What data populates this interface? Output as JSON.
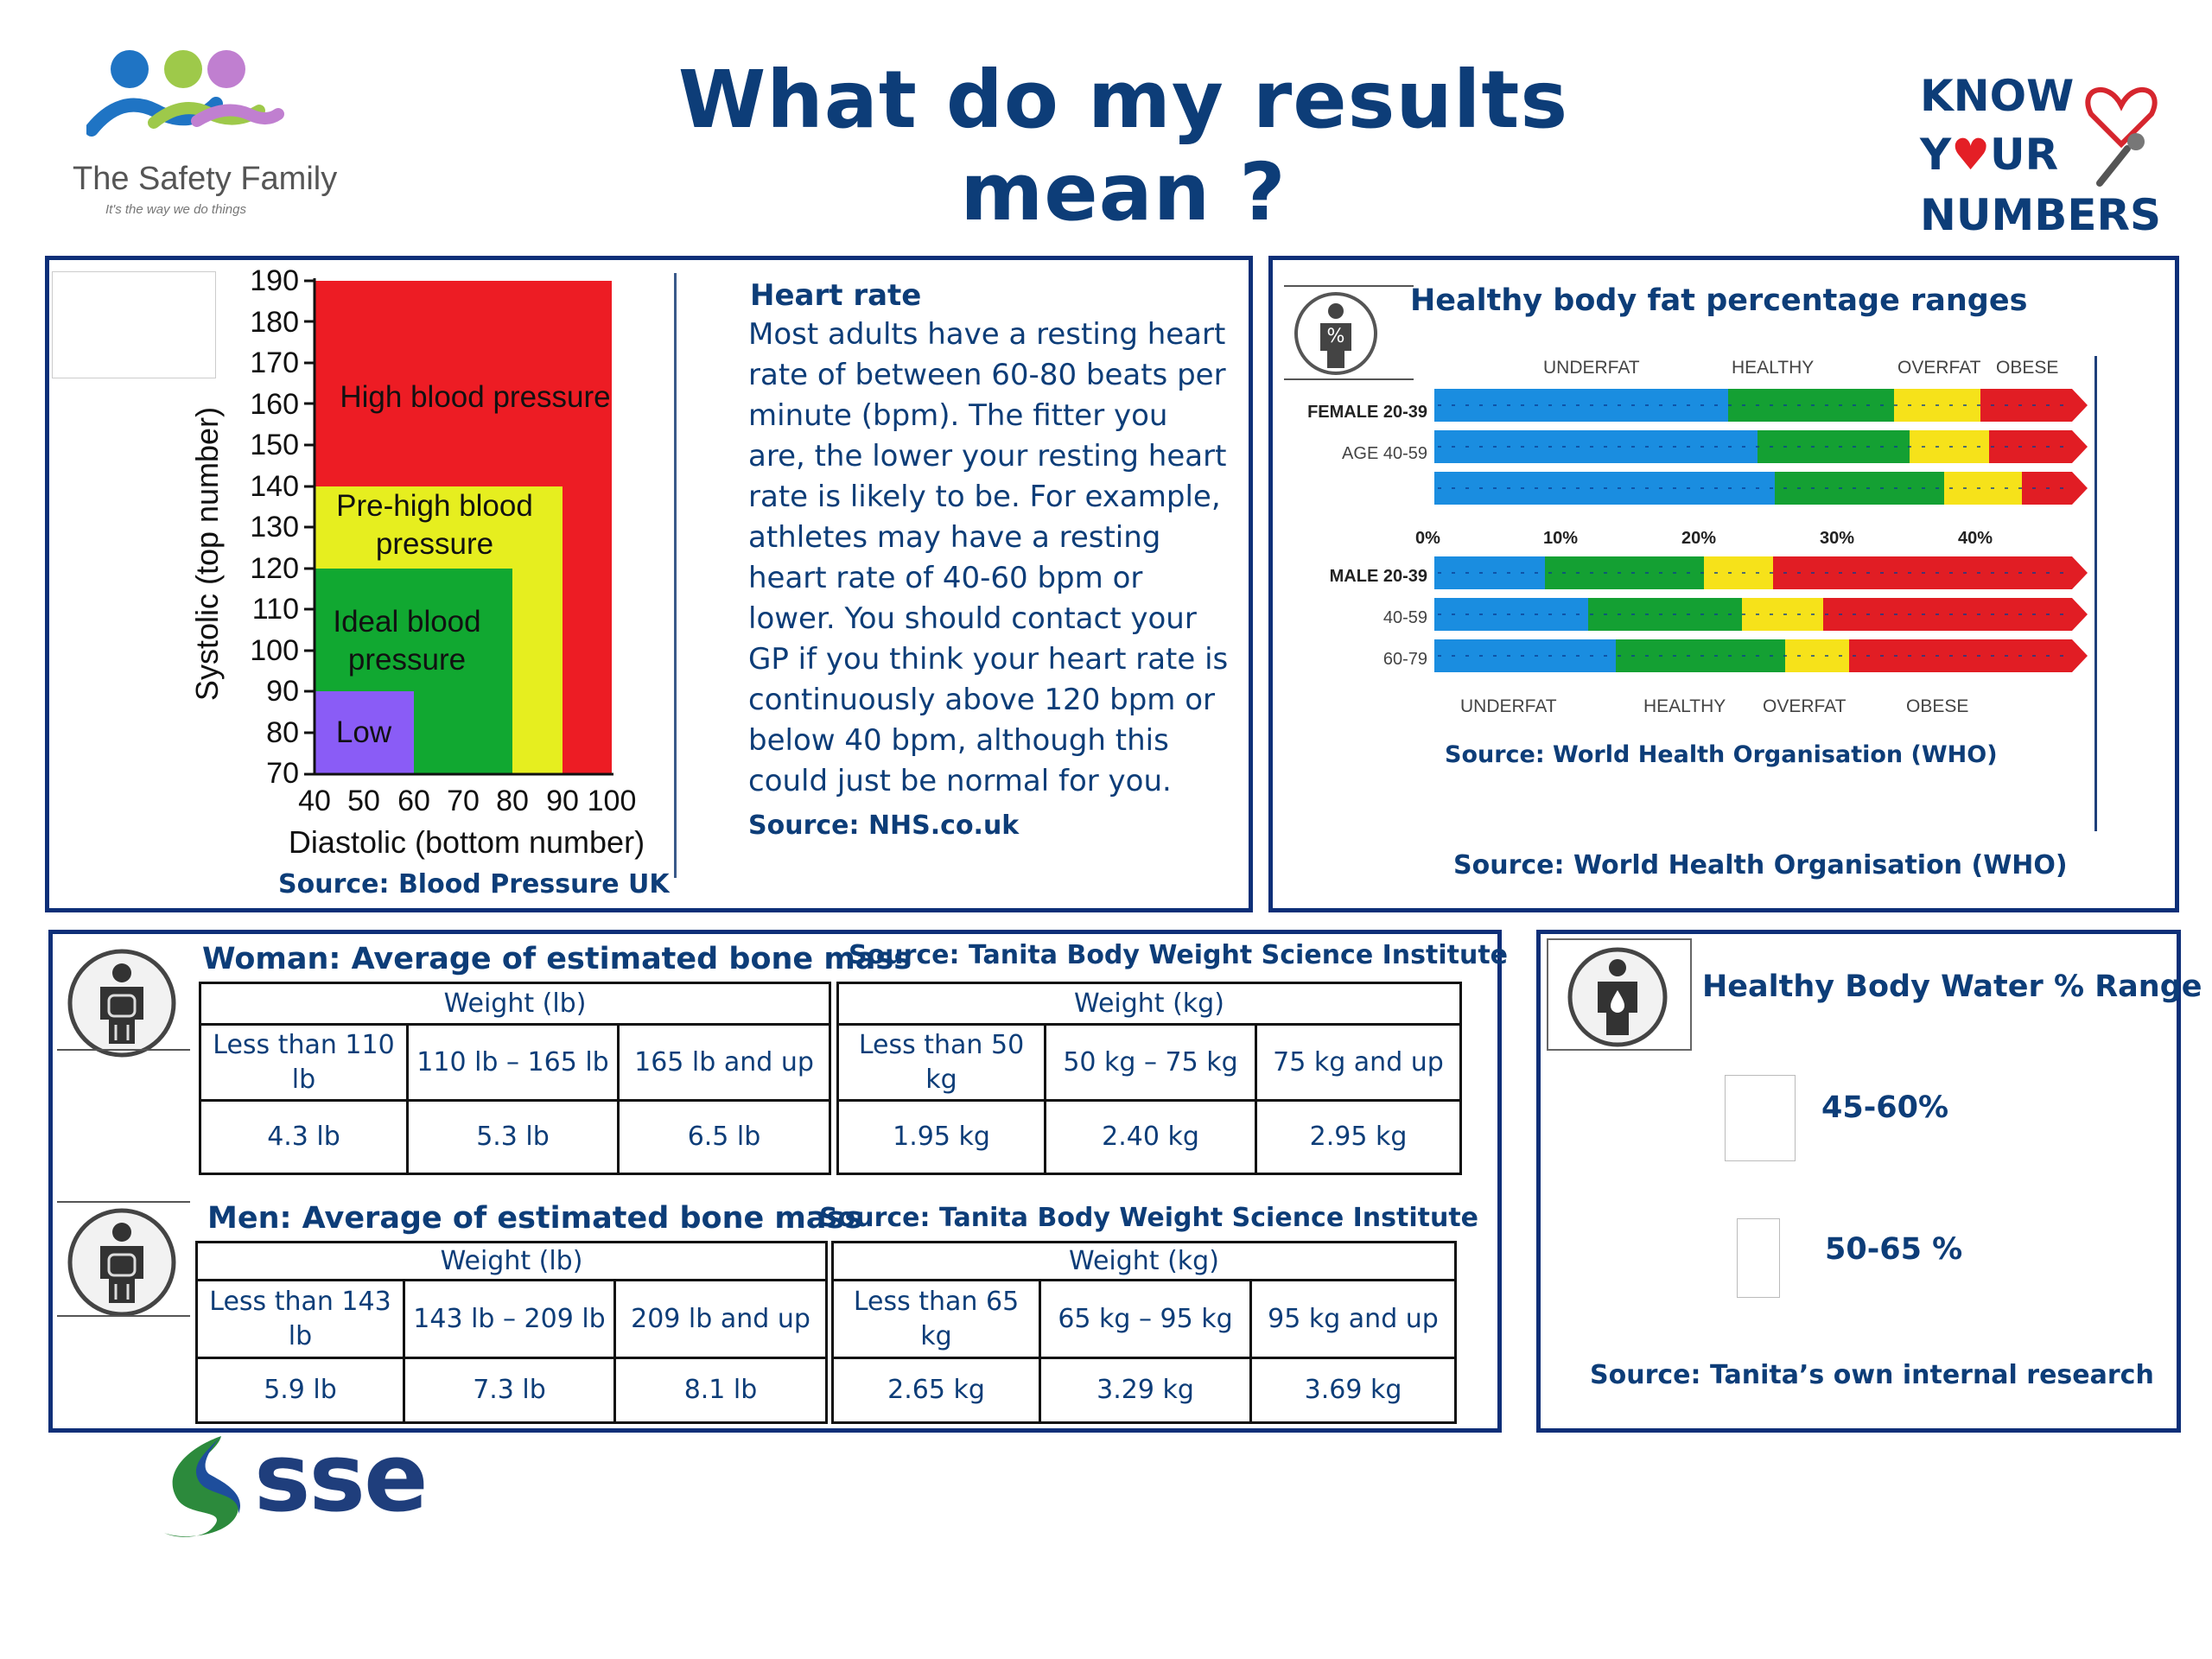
{
  "header": {
    "title": "What do my results mean ?",
    "logo": {
      "brand": "The Safety Family",
      "tagline": "It's the way we do things"
    },
    "badge": {
      "line1": "KNOW",
      "line2_prefix": "Y",
      "line2_suffix": "UR",
      "line3": "NUMBERS"
    },
    "footer_logo": "sse"
  },
  "blood_pressure": {
    "y_label": "Systolic (top number)",
    "x_label": "Diastolic (bottom number)",
    "y_ticks": [
      "190",
      "180",
      "170",
      "160",
      "150",
      "140",
      "130",
      "120",
      "110",
      "100",
      "90",
      "80",
      "70"
    ],
    "x_ticks": [
      "40",
      "50",
      "60",
      "70",
      "80",
      "90",
      "100"
    ],
    "zones": {
      "high": "High blood pressure",
      "prehigh_1": "Pre-high blood",
      "prehigh_2": "pressure",
      "ideal_1": "Ideal blood",
      "ideal_2": "pressure",
      "low": "Low"
    },
    "colors": {
      "high": "#ed1c24",
      "prehigh": "#e6ee1f",
      "ideal": "#11a831",
      "low": "#8a5cf6"
    },
    "source": "Source: Blood Pressure  UK"
  },
  "heart_rate": {
    "title": "Heart rate",
    "body": "Most adults have a resting heart rate of between 60-80 beats per minute (bpm). The fitter you are, the lower your resting heart rate is likely to be. For example, athletes may have a resting heart rate of 40-60 bpm or lower. You should contact your GP if you think your heart rate is continuously above 120 bpm or below 40 bpm, although this could just be normal for you.",
    "source": "Source: NHS.co.uk"
  },
  "body_fat": {
    "title": "Healthy body fat percentage ranges",
    "icon": "percent-body-icon",
    "top_headers": [
      "UNDERFAT",
      "HEALTHY",
      "OVERFAT",
      "OBESE"
    ],
    "female_label": "FEMALE 20-39",
    "female_age_label": "AGE 40-59",
    "axis_ticks": [
      "0%",
      "10%",
      "20%",
      "30%",
      "40%"
    ],
    "male_labels": [
      "MALE 20-39",
      "40-59",
      "60-79"
    ],
    "bottom_headers": [
      "UNDERFAT",
      "HEALTHY",
      "OVERFAT",
      "OBESE"
    ],
    "source_inner": "Source: World Health Organisation (WHO)",
    "source": "Source: World Health Organisation (WHO)"
  },
  "bone_women": {
    "title": "Woman: Average of estimated bone mass",
    "source": "Source: Tanita Body Weight Science Institute",
    "lb_header": "Weight (lb)",
    "kg_header": "Weight (kg)",
    "lb_ranges": [
      "Less than 110 lb",
      "110 lb – 165 lb",
      "165 lb and up"
    ],
    "lb_values": [
      "4.3 lb",
      "5.3 lb",
      "6.5 lb"
    ],
    "kg_ranges": [
      "Less than 50 kg",
      "50 kg – 75 kg",
      "75 kg and up"
    ],
    "kg_values": [
      "1.95 kg",
      "2.40 kg",
      "2.95 kg"
    ]
  },
  "bone_men": {
    "title": "Men: Average of estimated bone mass",
    "source": "Source: Tanita Body Weight Science Institute",
    "lb_header": "Weight (lb)",
    "kg_header": "Weight (kg)",
    "lb_ranges": [
      "Less than 143 lb",
      "143 lb – 209 lb",
      "209 lb and up"
    ],
    "lb_values": [
      "5.9 lb",
      "7.3 lb",
      "8.1 lb"
    ],
    "kg_ranges": [
      "Less than 65 kg",
      "65 kg – 95 kg",
      "95 kg and up"
    ],
    "kg_values": [
      "2.65 kg",
      "3.29 kg",
      "3.69 kg"
    ]
  },
  "body_water": {
    "title": "Healthy Body Water % Range",
    "female_range": "45-60%",
    "male_range": "50-65 %",
    "source": "Source: Tanita’s own internal research"
  }
}
